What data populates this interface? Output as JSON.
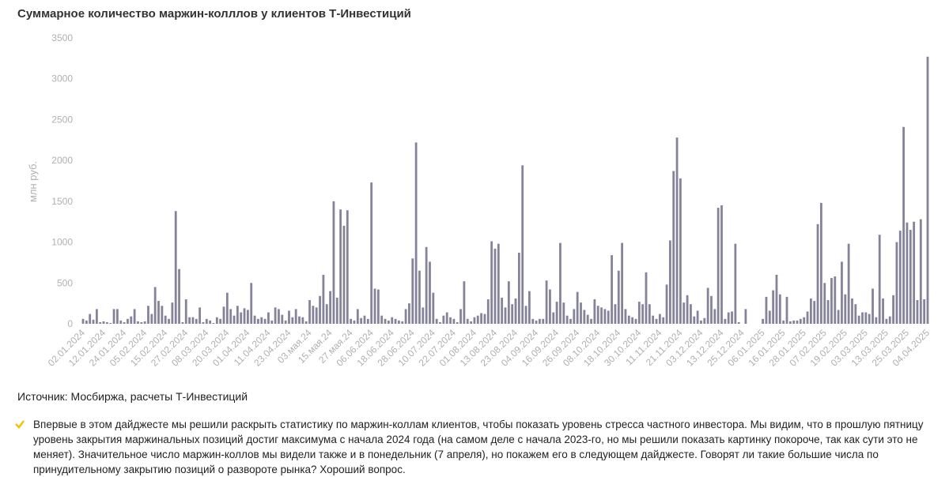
{
  "chart_data": {
    "type": "bar",
    "title": "Суммарное количество маржин-колллов  у клиентов Т-Инвестиций",
    "ylabel": "млн руб.",
    "source": "Источник: Мосбиржа, расчеты Т-Инвестиций",
    "note": "Впервые в этом дайджесте мы решили раскрыть статистику по маржин-коллам клиентов, чтобы показать уровень стресса частного инвестора. Мы видим, что в прошлую пятницу уровень закрытия маржинальных позиций достиг максимума с начала 2024 года (на самом деле с начала 2023-го, но мы решили показать картинку покороче, так как сути это не меняет). Значительное число маржин-коллов мы видели также и в понедельник (7 апреля), но покажем его в следующем дайджесте. Говорят ли такие большие числа по принудительному закрытию позиций о развороте рынка? Хороший вопрос.",
    "color": "#85839a",
    "ylim": [
      0,
      3500
    ],
    "yticks": [
      0,
      500,
      1000,
      1500,
      2000,
      2500,
      3000,
      3500
    ],
    "grid": false,
    "categories": [
      "02.01.2024",
      null,
      null,
      null,
      null,
      null,
      "12.01.2024",
      null,
      null,
      null,
      null,
      null,
      "24.01.2024",
      null,
      null,
      null,
      null,
      null,
      "05.02.2024",
      null,
      null,
      null,
      null,
      null,
      "15.02.2024",
      null,
      null,
      null,
      null,
      null,
      "27.02.2024",
      null,
      null,
      null,
      null,
      null,
      "08.03.2024",
      null,
      null,
      null,
      null,
      null,
      "20.03.2024",
      null,
      null,
      null,
      null,
      null,
      "01.04.2024",
      null,
      null,
      null,
      null,
      null,
      "11.04.2024",
      null,
      null,
      null,
      null,
      null,
      "23.04.2024",
      null,
      null,
      null,
      null,
      null,
      "03.мая.24",
      null,
      null,
      null,
      null,
      null,
      "15.мая.24",
      null,
      null,
      null,
      null,
      null,
      "27.мая.24",
      null,
      null,
      null,
      null,
      null,
      "06.06.2024",
      null,
      null,
      null,
      null,
      null,
      "18.06.2024",
      null,
      null,
      null,
      null,
      null,
      "28.06.2024",
      null,
      null,
      null,
      null,
      null,
      "10.07.2024",
      null,
      null,
      null,
      null,
      null,
      "22.07.2024",
      null,
      null,
      null,
      null,
      null,
      "01.08.2024",
      null,
      null,
      null,
      null,
      null,
      "13.08.2024",
      null,
      null,
      null,
      null,
      null,
      "23.08.2024",
      null,
      null,
      null,
      null,
      null,
      "04.09.2024",
      null,
      null,
      null,
      null,
      null,
      "16.09.2024",
      null,
      null,
      null,
      null,
      null,
      "26.09.2024",
      null,
      null,
      null,
      null,
      null,
      "08.10.2024",
      null,
      null,
      null,
      null,
      null,
      "18.10.2024",
      null,
      null,
      null,
      null,
      null,
      "30.10.2024",
      null,
      null,
      null,
      null,
      null,
      "11.11.2024",
      null,
      null,
      null,
      null,
      null,
      "21.11.2024",
      null,
      null,
      null,
      null,
      null,
      "03.12.2024",
      null,
      null,
      null,
      null,
      null,
      "13.12.2024",
      null,
      null,
      null,
      null,
      null,
      "25.12.2024",
      null,
      null,
      null,
      null,
      null,
      "06.01.2025",
      null,
      null,
      null,
      null,
      null,
      "16.01.2025",
      null,
      null,
      null,
      null,
      null,
      "28.01.2025",
      null,
      null,
      null,
      null,
      null,
      "07.02.2025",
      null,
      null,
      null,
      null,
      null,
      "19.02.2025",
      null,
      null,
      null,
      null,
      null,
      "03.03.2025",
      null,
      null,
      null,
      null,
      null,
      "13.03.2025",
      null,
      null,
      null,
      null,
      null,
      "25.03.2025",
      null,
      null,
      null,
      null,
      null,
      "04.04.2025"
    ],
    "values": [
      60,
      40,
      120,
      50,
      180,
      20,
      30,
      20,
      10,
      180,
      180,
      40,
      20,
      60,
      90,
      180,
      30,
      20,
      30,
      220,
      120,
      450,
      280,
      220,
      100,
      60,
      260,
      1380,
      670,
      20,
      300,
      80,
      80,
      60,
      200,
      20,
      60,
      40,
      10,
      80,
      60,
      210,
      380,
      180,
      100,
      220,
      140,
      190,
      170,
      500,
      100,
      60,
      80,
      60,
      140,
      40,
      200,
      180,
      110,
      40,
      160,
      80,
      180,
      90,
      80,
      30,
      290,
      220,
      200,
      340,
      600,
      240,
      400,
      1500,
      320,
      1400,
      1200,
      1390,
      60,
      40,
      180,
      70,
      100,
      60,
      1730,
      430,
      420,
      100,
      60,
      40,
      80,
      60,
      40,
      30,
      180,
      250,
      800,
      2220,
      650,
      200,
      940,
      760,
      380,
      60,
      20,
      100,
      140,
      80,
      60,
      20,
      180,
      520,
      60,
      30,
      80,
      100,
      130,
      120,
      300,
      1010,
      920,
      980,
      320,
      200,
      520,
      240,
      310,
      870,
      1940,
      220,
      400,
      60,
      40,
      60,
      60,
      530,
      420,
      140,
      270,
      990,
      260,
      100,
      60,
      180,
      390,
      260,
      170,
      110,
      60,
      300,
      220,
      200,
      180,
      160,
      840,
      240,
      650,
      990,
      180,
      100,
      80,
      60,
      270,
      240,
      630,
      240,
      100,
      60,
      120,
      80,
      480,
      1020,
      1870,
      2280,
      1780,
      260,
      350,
      240,
      90,
      160,
      40,
      70,
      440,
      340,
      180,
      1420,
      1450,
      60,
      140,
      150,
      980,
      20,
      0,
      180,
      0,
      0,
      0,
      0,
      60,
      330,
      160,
      410,
      600,
      360,
      40,
      330,
      30,
      40,
      40,
      60,
      80,
      150,
      310,
      280,
      1220,
      1480,
      500,
      290,
      560,
      580,
      170,
      760,
      360,
      980,
      310,
      240,
      100,
      140,
      140,
      120,
      430,
      80,
      1090,
      310,
      60,
      90,
      350,
      1000,
      1140,
      2410,
      1240,
      1150,
      1250,
      290,
      1280,
      300,
      3270
    ]
  }
}
